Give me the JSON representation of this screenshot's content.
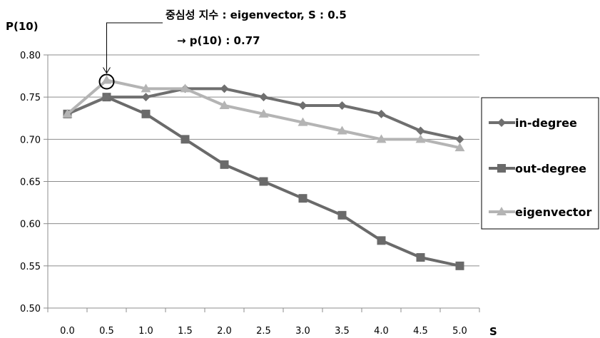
{
  "chart_data": {
    "type": "line",
    "ylabel": "P(10)",
    "xlabel": "S",
    "ylim": [
      0.5,
      0.8
    ],
    "yticks": [
      "0.50",
      "0.55",
      "0.60",
      "0.65",
      "0.70",
      "0.75",
      "0.80"
    ],
    "categories": [
      "0.0",
      "0.5",
      "1.0",
      "1.5",
      "2.0",
      "2.5",
      "3.0",
      "3.5",
      "4.0",
      "4.5",
      "5.0"
    ],
    "grid": true,
    "legend_position": "right",
    "series": [
      {
        "name": "in-degree",
        "marker": "diamond",
        "color": "#6f6f6f",
        "values": [
          0.73,
          0.75,
          0.75,
          0.76,
          0.76,
          0.75,
          0.74,
          0.74,
          0.73,
          0.71,
          0.7
        ]
      },
      {
        "name": "out-degree",
        "marker": "square",
        "color": "#6a6a6a",
        "values": [
          0.73,
          0.75,
          0.73,
          0.7,
          0.67,
          0.65,
          0.63,
          0.61,
          0.58,
          0.56,
          0.55
        ]
      },
      {
        "name": "eigenvector",
        "marker": "triangle",
        "color": "#b4b4b4",
        "values": [
          0.73,
          0.77,
          0.76,
          0.76,
          0.74,
          0.73,
          0.72,
          0.71,
          0.7,
          0.7,
          0.69
        ]
      }
    ],
    "annotation": {
      "line1": "중심성 지수 : eigenvector,  S : 0.5",
      "line2": "→ p(10) : 0.77",
      "target_series": 2,
      "target_index": 1
    }
  }
}
